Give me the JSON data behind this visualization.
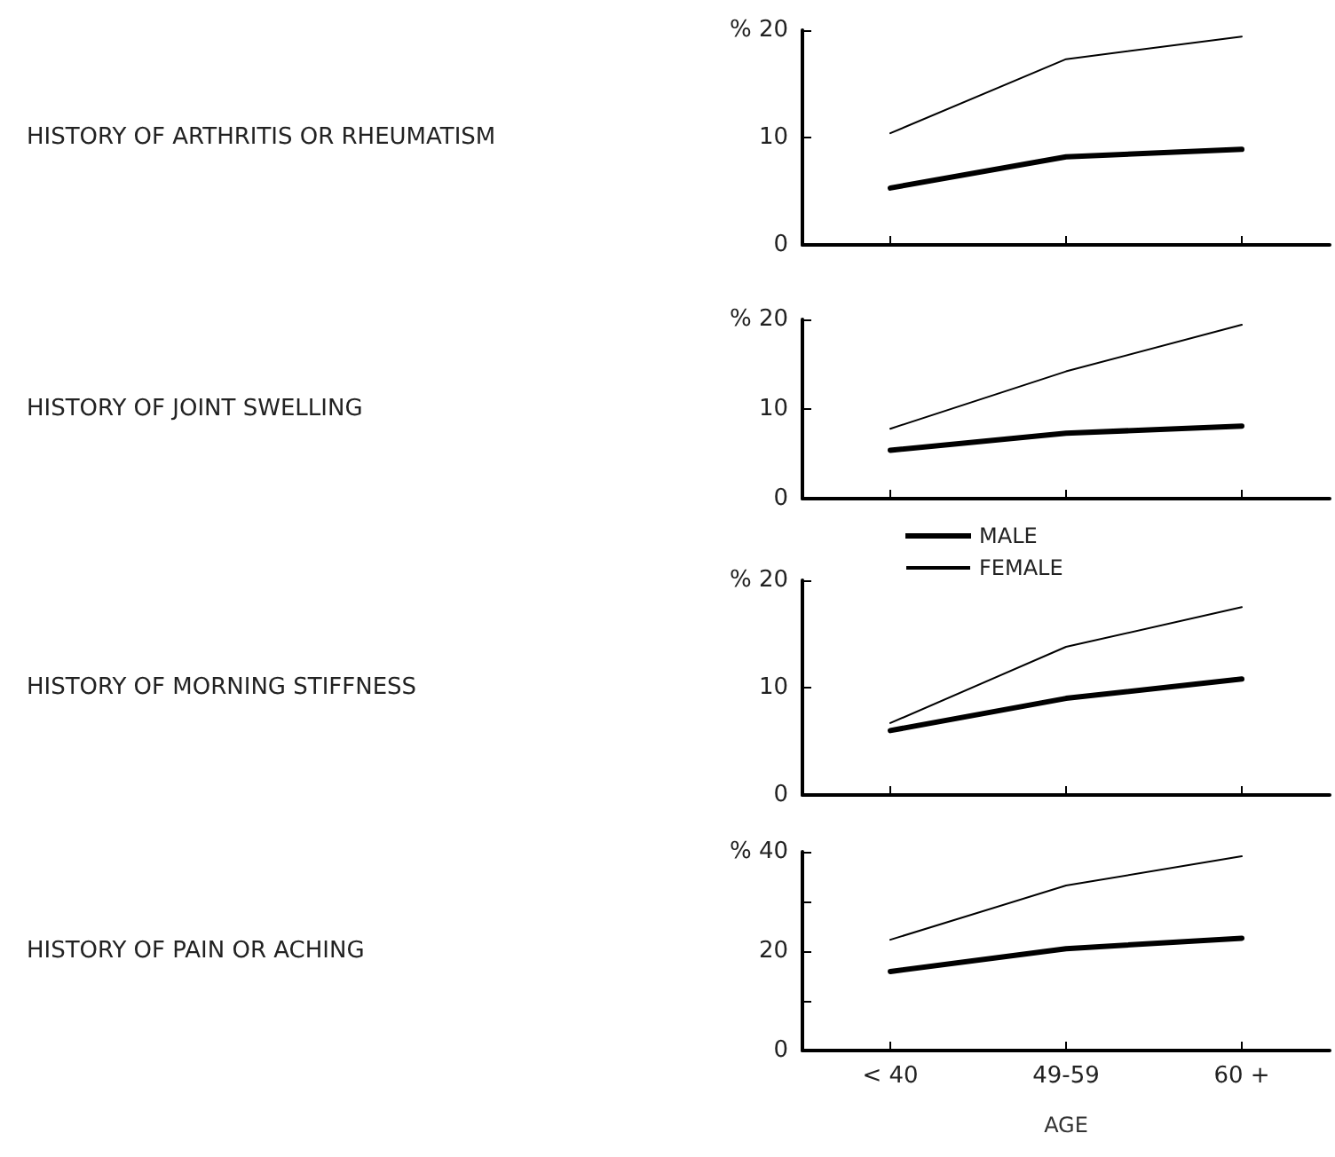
{
  "chart_data": [
    {
      "type": "line",
      "ylabel": "HISTORY OF ARTHRITIS OR RHEUMATISM",
      "categories": [
        null,
        null,
        null
      ],
      "ylim": [
        0,
        20
      ],
      "yticks": [
        0,
        10,
        {
          "value": 20,
          "label": "% 20"
        }
      ],
      "tick_labels": "y",
      "grid": false,
      "legend": false,
      "marker": "none",
      "line_style": "solid",
      "series": [
        {
          "color": "#000000",
          "values": [
            5.3,
            8.2,
            8.9
          ]
        },
        {
          "color": "#000000",
          "values": [
            10.4,
            17.3,
            19.4
          ]
        }
      ]
    },
    {
      "type": "line",
      "ylabel": "HISTORY OF JOINT SWELLING",
      "categories": [
        null,
        null,
        null
      ],
      "ylim": [
        0,
        20
      ],
      "yticks": [
        0,
        10,
        {
          "value": 20,
          "label": "% 20"
        }
      ],
      "tick_labels": "y",
      "grid": false,
      "legend": "bottom left",
      "marker": "none",
      "line_style": "solid",
      "series": [
        {
          "name": "MALE",
          "color": "#000000",
          "values": [
            5.4,
            7.3,
            8.1
          ]
        },
        {
          "name": "FEMALE",
          "color": "#000000",
          "values": [
            7.8,
            14.2,
            19.4
          ]
        }
      ]
    },
    {
      "type": "line",
      "ylabel": "HISTORY OF MORNING STIFFNESS",
      "categories": [
        null,
        null,
        null
      ],
      "ylim": [
        0,
        20
      ],
      "yticks": [
        0,
        10,
        {
          "value": 20,
          "label": "% 20"
        }
      ],
      "tick_labels": "y",
      "grid": false,
      "legend": false,
      "marker": "none",
      "line_style": "solid",
      "series": [
        {
          "color": "#000000",
          "values": [
            6.0,
            9.0,
            10.8
          ]
        },
        {
          "color": "#000000",
          "values": [
            6.7,
            13.8,
            17.5
          ]
        }
      ]
    },
    {
      "type": "line",
      "ylabel": "HISTORY OF PAIN OR ACHING",
      "xlabel": "AGE",
      "categories": [
        "< 40",
        "49-59",
        "60 +"
      ],
      "ylim": [
        0,
        40
      ],
      "yticks": [
        0,
        {
          "value": 10,
          "label": null
        },
        20,
        {
          "value": 30,
          "label": null
        },
        {
          "value": 40,
          "label": "% 40"
        }
      ],
      "grid": false,
      "legend": false,
      "marker": "none",
      "line_style": "solid",
      "series": [
        {
          "color": "#000000",
          "values": [
            15.9,
            20.5,
            22.6
          ]
        },
        {
          "color": "#000000",
          "values": [
            22.3,
            33.2,
            39.1
          ]
        }
      ]
    }
  ]
}
